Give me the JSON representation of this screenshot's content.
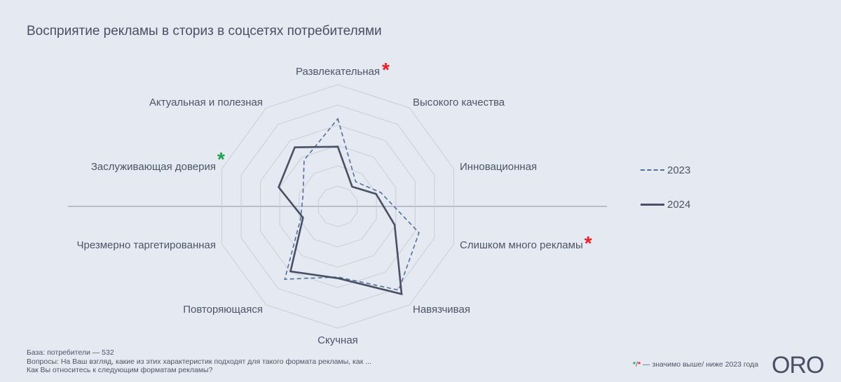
{
  "title": "Восприятие рекламы в сториз в соцсетях потребителями",
  "chart_data": {
    "type": "radar",
    "title": "Восприятие рекламы в сториз в соцсетях потребителями",
    "categories": [
      "Развлекательная",
      "Высокого качества",
      "Инновационная",
      "Слишком много рекламы",
      "Навязчивая",
      "Скучная",
      "Повторяющаяся",
      "Чрезмерно таргетированная",
      "Заслуживающая доверия",
      "Актуальная и полезная"
    ],
    "series": [
      {
        "name": "2023",
        "style": "dashed",
        "color": "#53709a",
        "values": [
          72,
          25,
          37,
          70,
          85,
          58,
          74,
          32,
          30,
          47
        ]
      },
      {
        "name": "2024",
        "style": "solid",
        "color": "#4a5064",
        "values": [
          49,
          20,
          33,
          49,
          89,
          59,
          66,
          30,
          51,
          60
        ]
      }
    ],
    "rlim": [
      0,
      100
    ],
    "grid_rings": 6,
    "significance": [
      {
        "category": "Развлекательная",
        "mark": "*",
        "meaning": "lower",
        "color": "#ee1c24"
      },
      {
        "category": "Слишком много рекламы",
        "mark": "*",
        "meaning": "lower",
        "color": "#ee1c24"
      },
      {
        "category": "Заслуживающая доверия",
        "mark": "*",
        "meaning": "higher",
        "color": "#1aa54a"
      }
    ],
    "legend_position": "right"
  },
  "legend": [
    {
      "label": "2023"
    },
    {
      "label": "2024"
    }
  ],
  "footnote": {
    "base": "База: потребители — 532",
    "question1": "Вопросы: На Ваш взгляд, какие из этих характеристик подходят для такого формата рекламы, как ...",
    "question2": "Как Вы относитесь к следующим форматам рекламы?"
  },
  "significance_note": {
    "green_star": "*",
    "slash": "/",
    "red_star": "*",
    "text": " — значимо выше/ ниже 2023 года"
  },
  "logo": "ORO"
}
